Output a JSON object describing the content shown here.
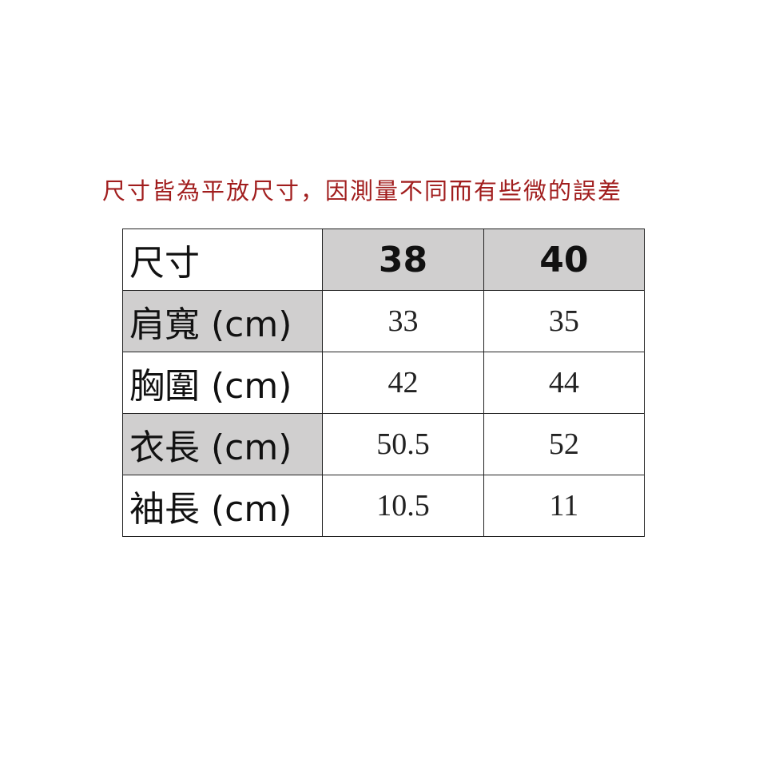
{
  "note": "尺寸皆為平放尺寸，因測量不同而有些微的誤差",
  "colors": {
    "note": "#a11d1d",
    "highlight": "#d0cfcf"
  },
  "table": {
    "header": {
      "label": "尺寸",
      "sizes": [
        "38",
        "40"
      ]
    },
    "rows": [
      {
        "label": "肩寬 (cm)",
        "values": [
          "33",
          "35"
        ]
      },
      {
        "label": "胸圍 (cm)",
        "values": [
          "42",
          "44"
        ]
      },
      {
        "label": "衣長 (cm)",
        "values": [
          "50.5",
          "52"
        ]
      },
      {
        "label": "袖長 (cm)",
        "values": [
          "10.5",
          "11"
        ]
      }
    ]
  }
}
